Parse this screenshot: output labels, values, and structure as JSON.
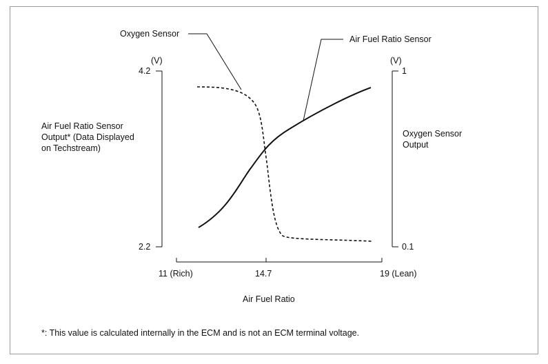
{
  "callouts": {
    "oxygen_sensor": "Oxygen Sensor",
    "af_sensor": "Air Fuel Ratio Sensor"
  },
  "left_axis": {
    "unit": "(V)",
    "max": "4.2",
    "min": "2.2",
    "label": [
      "Air Fuel Ratio Sensor",
      "Output* (Data Displayed",
      "on Techstream)"
    ]
  },
  "right_axis": {
    "unit": "(V)",
    "max": "1",
    "min": "0.1",
    "label": [
      "Oxygen Sensor",
      "Output"
    ]
  },
  "x_axis": {
    "ticks": [
      "11 (Rich)",
      "14.7",
      "19 (Lean)"
    ],
    "label": "Air Fuel Ratio"
  },
  "footnote": "*: This value is calculated internally in the ECM and is not an ECM terminal voltage.",
  "colors": {
    "line": "#111111",
    "frame": "#9a9a9a"
  }
}
